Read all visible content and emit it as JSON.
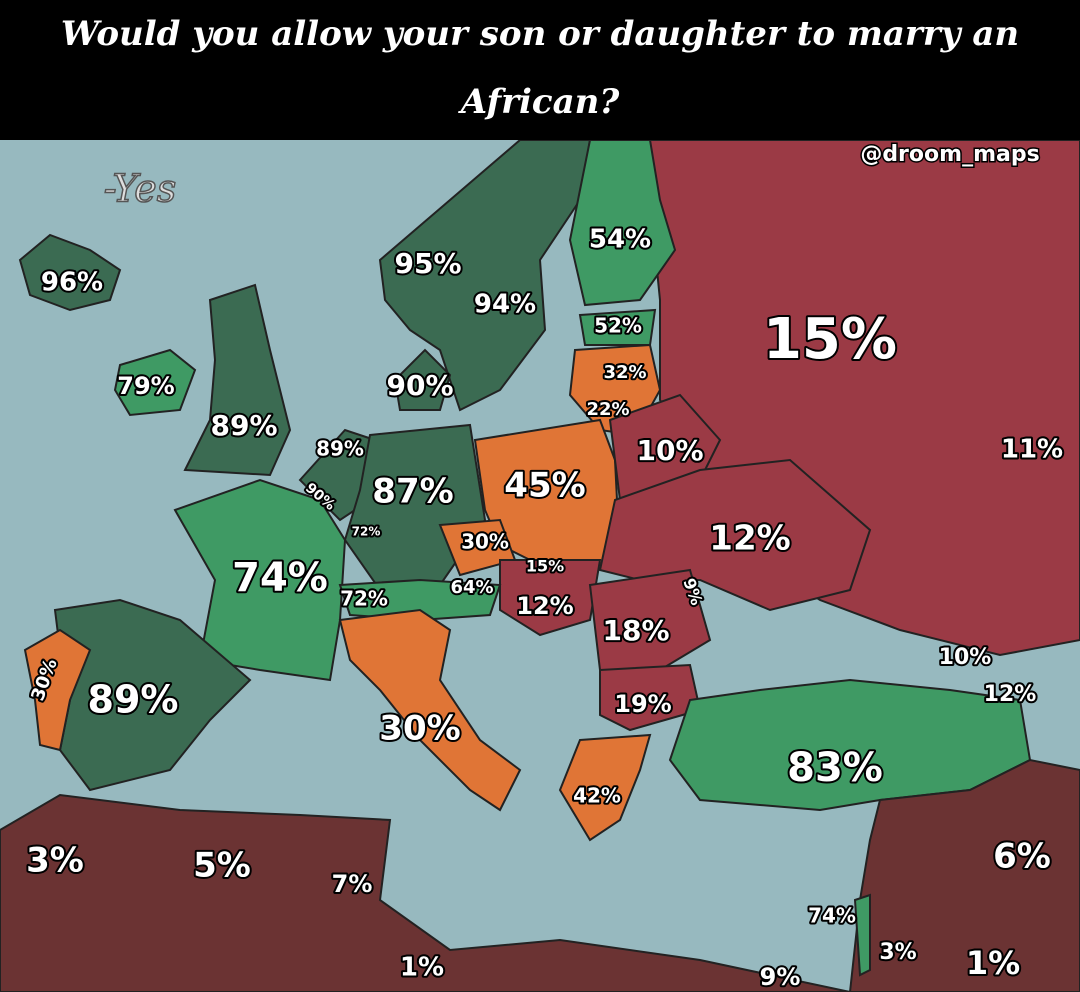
{
  "header": {
    "title": "Would you allow your son or daughter to marry an African?",
    "legend": "-Yes",
    "credit": "@droom_maps"
  },
  "regions": [
    {
      "label": "96%"
    },
    {
      "label": "95%"
    },
    {
      "label": "94%"
    },
    {
      "label": "54%"
    },
    {
      "label": "52%"
    },
    {
      "label": "15%"
    },
    {
      "label": "79%"
    },
    {
      "label": "89%"
    },
    {
      "label": "90%"
    },
    {
      "label": "32%"
    },
    {
      "label": "22%"
    },
    {
      "label": "10%"
    },
    {
      "label": "11%"
    },
    {
      "label": "89%"
    },
    {
      "label": "90%"
    },
    {
      "label": "87%"
    },
    {
      "label": "45%"
    },
    {
      "label": "12%"
    },
    {
      "label": "72%"
    },
    {
      "label": "30%"
    },
    {
      "label": "15%"
    },
    {
      "label": "74%"
    },
    {
      "label": "72%"
    },
    {
      "label": "64%"
    },
    {
      "label": "12%"
    },
    {
      "label": "9%"
    },
    {
      "label": "18%"
    },
    {
      "label": "10%"
    },
    {
      "label": "12%"
    },
    {
      "label": "30%"
    },
    {
      "label": "89%"
    },
    {
      "label": "19%"
    },
    {
      "label": "30%"
    },
    {
      "label": "83%"
    },
    {
      "label": "42%"
    },
    {
      "label": "3%"
    },
    {
      "label": "5%"
    },
    {
      "label": "7%"
    },
    {
      "label": "6%"
    },
    {
      "label": "74%"
    },
    {
      "label": "3%"
    },
    {
      "label": "1%"
    },
    {
      "label": "9%"
    },
    {
      "label": "1%"
    }
  ]
}
